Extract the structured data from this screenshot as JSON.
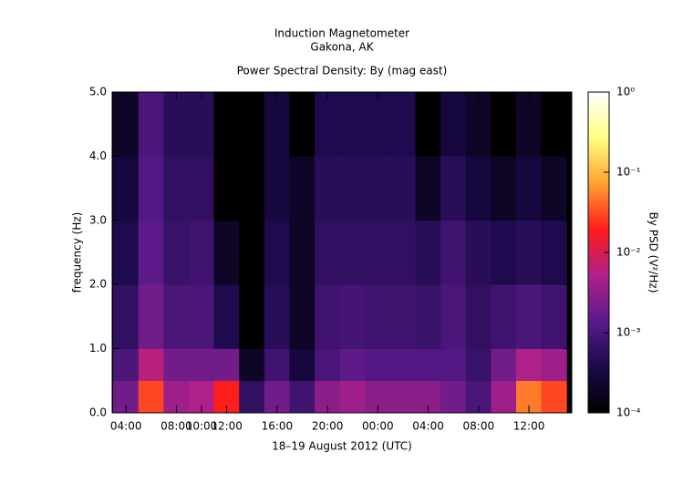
{
  "chart_data": {
    "type": "heatmap",
    "title": "Induction Magnetometer",
    "subtitle": "Gakona, AK",
    "plot_title": "Power Spectral Density: By (mag east)",
    "xlabel": "18–19 August 2012 (UTC)",
    "ylabel": "frequency (Hz)",
    "colorbar_label": "By PSD (V²/Hz)",
    "xlim": [
      2.9,
      39.4
    ],
    "xticks": [
      {
        "value": 4,
        "label": "04:00"
      },
      {
        "value": 8,
        "label": "08:00"
      },
      {
        "value": 10,
        "label": "10:00"
      },
      {
        "value": 12,
        "label": "12:00"
      },
      {
        "value": 16,
        "label": "16:00"
      },
      {
        "value": 20,
        "label": "20:00"
      },
      {
        "value": 24,
        "label": "00:00"
      },
      {
        "value": 28,
        "label": "04:00"
      },
      {
        "value": 32,
        "label": "08:00"
      },
      {
        "value": 36,
        "label": "12:00"
      }
    ],
    "ylim": [
      0,
      5
    ],
    "yticks": [
      {
        "value": 0,
        "label": "0.0"
      },
      {
        "value": 1,
        "label": "1.0"
      },
      {
        "value": 2,
        "label": "2.0"
      },
      {
        "value": 3,
        "label": "3.0"
      },
      {
        "value": 4,
        "label": "4.0"
      },
      {
        "value": 5,
        "label": "5.0"
      }
    ],
    "x_bins": [
      3,
      5,
      7,
      9,
      11,
      13,
      15,
      17,
      19,
      21,
      23,
      25,
      27,
      29,
      31,
      33,
      35,
      37,
      39
    ],
    "y_bins": [
      0,
      0.5,
      1,
      2,
      3,
      4,
      5
    ],
    "z": [
      [
        0.002,
        0.03,
        0.004,
        0.005,
        0.02,
        0.0006,
        0.002,
        0.0008,
        0.003,
        0.004,
        0.003,
        0.003,
        0.003,
        0.002,
        0.001,
        0.004,
        0.05,
        0.03
      ],
      [
        0.001,
        0.006,
        0.002,
        0.002,
        0.002,
        0.0002,
        0.0008,
        0.0003,
        0.001,
        0.0015,
        0.0012,
        0.0012,
        0.0012,
        0.0012,
        0.0007,
        0.002,
        0.005,
        0.004
      ],
      [
        0.0006,
        0.002,
        0.001,
        0.001,
        0.0004,
        0.0001,
        0.0005,
        0.0002,
        0.0008,
        0.0009,
        0.0008,
        0.0008,
        0.0007,
        0.001,
        0.0006,
        0.0008,
        0.001,
        0.0008
      ],
      [
        0.0004,
        0.0015,
        0.0007,
        0.0008,
        0.0002,
        0.0001,
        0.0004,
        0.0002,
        0.0006,
        0.0006,
        0.0006,
        0.0006,
        0.0005,
        0.0008,
        0.0005,
        0.0004,
        0.0005,
        0.0004
      ],
      [
        0.0003,
        0.0012,
        0.0006,
        0.0006,
        0.0001,
        0.0001,
        0.0003,
        0.0002,
        0.0005,
        0.0005,
        0.0005,
        0.0005,
        0.0002,
        0.0005,
        0.0003,
        0.0002,
        0.0003,
        0.0002
      ],
      [
        0.0002,
        0.001,
        0.0005,
        0.0005,
        0.0001,
        0.0001,
        0.0003,
        0.0001,
        0.0004,
        0.0004,
        0.0004,
        0.0004,
        0.0001,
        0.0003,
        0.0002,
        0.0001,
        0.0002,
        0.0001
      ]
    ],
    "clim": [
      0.0001,
      1
    ],
    "color_scale": "log",
    "cticks": [
      {
        "value": 0.0001,
        "label": "10⁻⁴"
      },
      {
        "value": 0.001,
        "label": "10⁻³"
      },
      {
        "value": 0.01,
        "label": "10⁻²"
      },
      {
        "value": 0.1,
        "label": "10⁻¹"
      },
      {
        "value": 1,
        "label": "10⁰"
      }
    ],
    "colormap": [
      "#000000",
      "#1a0a4a",
      "#5a1a8a",
      "#b0208a",
      "#ff1a1a",
      "#ffa030",
      "#ffff80",
      "#ffffff"
    ]
  }
}
